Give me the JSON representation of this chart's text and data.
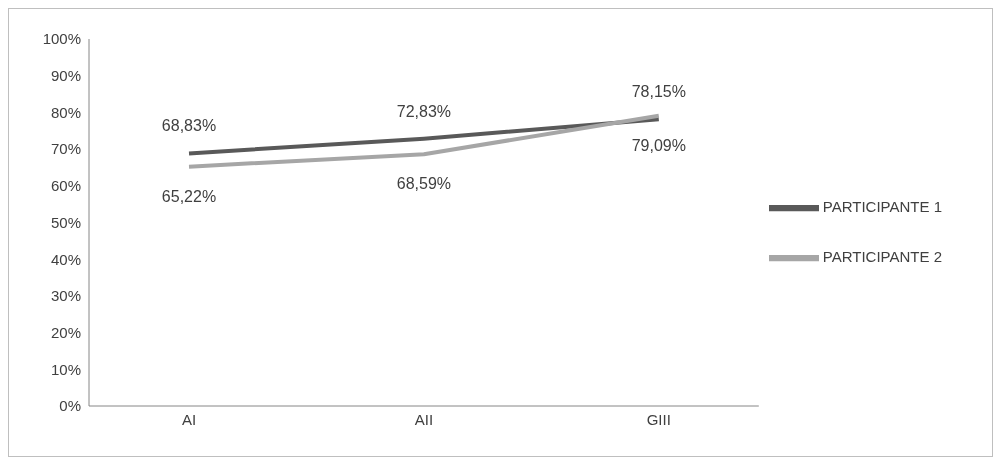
{
  "chart_data": {
    "type": "line",
    "categories": [
      "AI",
      "AII",
      "GIII"
    ],
    "series": [
      {
        "name": "PARTICIPANTE 1",
        "color": "#595959",
        "values": [
          68.83,
          72.83,
          78.15
        ],
        "value_labels": [
          "68,83%",
          "72,83%",
          "78,15%"
        ]
      },
      {
        "name": "PARTICIPANTE 2",
        "color": "#a6a6a6",
        "values": [
          65.22,
          68.59,
          79.09
        ],
        "value_labels": [
          "65,22%",
          "68,59%",
          "79,09%"
        ]
      }
    ],
    "ylim": [
      0,
      100
    ],
    "yticks": [
      {
        "value": 0,
        "label": "0%"
      },
      {
        "value": 10,
        "label": "10%"
      },
      {
        "value": 20,
        "label": "20%"
      },
      {
        "value": 30,
        "label": "30%"
      },
      {
        "value": 40,
        "label": "40%"
      },
      {
        "value": 50,
        "label": "50%"
      },
      {
        "value": 60,
        "label": "60%"
      },
      {
        "value": 70,
        "label": "70%"
      },
      {
        "value": 80,
        "label": "80%"
      },
      {
        "value": 90,
        "label": "90%"
      },
      {
        "value": 100,
        "label": "100%"
      }
    ],
    "grid": false,
    "legend": "right",
    "marker": "none",
    "line_style": "solid"
  }
}
